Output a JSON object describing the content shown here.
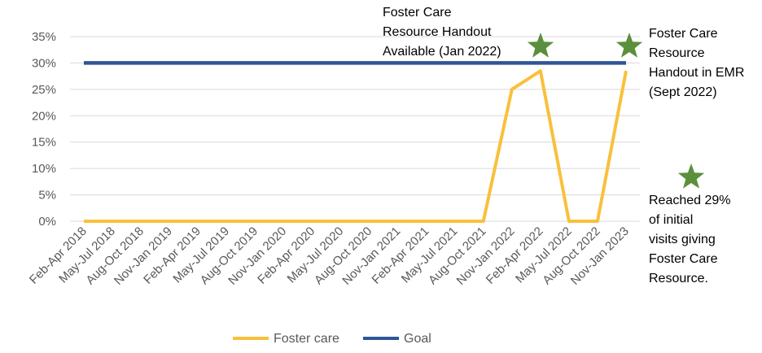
{
  "chart_data": {
    "type": "line",
    "categories": [
      "Feb-Apr 2018",
      "May-Jul 2018",
      "Aug-Oct 2018",
      "Nov-Jan 2019",
      "Feb-Apr 2019",
      "May-Jul 2019",
      "Aug-Oct 2019",
      "Nov-Jan 2020",
      "Feb-Apr 2020",
      "May-Jul 2020",
      "Aug-Oct 2020",
      "Nov-Jan 2021",
      "Feb-Apr 2021",
      "May-Jul 2021",
      "Aug-Oct 2021",
      "Nov-Jan 2022",
      "Feb-Apr 2022",
      "May-Jul 2022",
      "Aug-Oct 2022",
      "Nov-Jan 2023"
    ],
    "y_ticks": [
      "0%",
      "5%",
      "10%",
      "15%",
      "20%",
      "25%",
      "30%",
      "35%"
    ],
    "ylim": [
      0,
      35
    ],
    "grid": true,
    "legend_position": "bottom",
    "series": [
      {
        "name": "Foster care",
        "color": "#F9C03C",
        "values": [
          0,
          0,
          0,
          0,
          0,
          0,
          0,
          0,
          0,
          0,
          0,
          0,
          0,
          0,
          0,
          25,
          28.5,
          0,
          0,
          28.5
        ]
      },
      {
        "name": "Goal",
        "color": "#2F5597",
        "values": [
          30,
          30,
          30,
          30,
          30,
          30,
          30,
          30,
          30,
          30,
          30,
          30,
          30,
          30,
          30,
          30,
          30,
          30,
          30,
          30
        ]
      }
    ],
    "marker_color": "#5A8F3C",
    "annotations": {
      "handout_available": [
        "Foster Care",
        "Resource Handout",
        "Available (Jan 2022)"
      ],
      "handout_emr": [
        "Foster Care",
        "Resource",
        "Handout in EMR",
        "(Sept 2022)"
      ],
      "reached": [
        "Reached 29%",
        "of initial",
        "visits giving",
        "Foster Care",
        "Resource."
      ]
    }
  }
}
